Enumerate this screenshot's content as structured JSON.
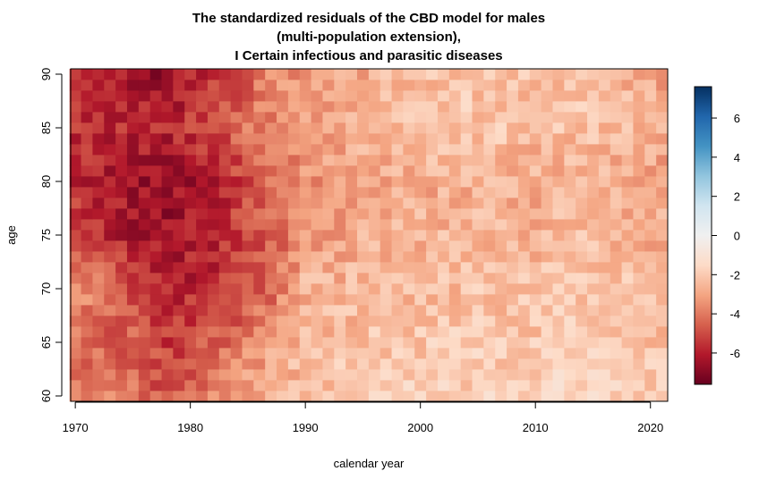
{
  "chart_data": {
    "type": "heatmap",
    "title": [
      "The standardized residuals of the CBD model for males",
      "(multi-population extension),",
      "I Certain infectious and parasitic diseases"
    ],
    "xlabel": "calendar year",
    "ylabel": "age",
    "x_ticks": [
      "1970",
      "1980",
      "1990",
      "2000",
      "2010",
      "2020"
    ],
    "y_ticks": [
      "60",
      "65",
      "70",
      "75",
      "80",
      "85",
      "90"
    ],
    "colorbar_ticks": [
      "6",
      "4",
      "2",
      "0",
      "-2",
      "-4",
      "-6"
    ],
    "xlim": [
      1970,
      2021
    ],
    "ylim": [
      60,
      90
    ],
    "zlim": [
      -7.6,
      7.6
    ],
    "colorscale": "RdBu diverging (dark red = negative, light grey = 0, dark blue = positive)",
    "color_stops": [
      "#67001F",
      "#B2182B",
      "#D6604D",
      "#F4A582",
      "#FDDBC7",
      "#F0F0F0",
      "#D1E5F0",
      "#92C5DE",
      "#4393C3",
      "#2166AC",
      "#053061"
    ],
    "values_shape": "rows = ages 60..90, columns = years 1970..2021",
    "approx_grid": {
      "ages": [
        60,
        65,
        70,
        75,
        80,
        85,
        90
      ],
      "years": [
        1970,
        1975,
        1978,
        1982,
        1987,
        1990,
        1995,
        2000,
        2005,
        2010,
        2015,
        2021
      ],
      "z": [
        [
          -3.8,
          -4.2,
          -4.8,
          -3.6,
          -2.8,
          -2.2,
          -2.0,
          -1.8,
          -1.8,
          -1.8,
          -1.6,
          -2.0
        ],
        [
          -4.2,
          -4.6,
          -5.4,
          -4.6,
          -3.2,
          -2.5,
          -2.3,
          -2.1,
          -2.0,
          -2.1,
          -1.9,
          -2.3
        ],
        [
          -3.4,
          -4.9,
          -5.8,
          -5.8,
          -4.4,
          -2.6,
          -2.5,
          -2.4,
          -2.3,
          -2.3,
          -2.1,
          -2.5
        ],
        [
          -5.0,
          -6.2,
          -6.4,
          -5.8,
          -4.6,
          -3.4,
          -2.7,
          -2.6,
          -2.5,
          -2.6,
          -2.4,
          -2.8
        ],
        [
          -5.8,
          -6.4,
          -6.6,
          -6.0,
          -4.4,
          -3.6,
          -3.0,
          -2.8,
          -2.7,
          -2.8,
          -2.6,
          -3.0
        ],
        [
          -5.6,
          -5.8,
          -5.9,
          -5.0,
          -3.6,
          -3.0,
          -2.6,
          -2.2,
          -2.1,
          -2.4,
          -2.3,
          -2.8
        ],
        [
          -5.4,
          -6.4,
          -6.6,
          -5.4,
          -3.8,
          -3.2,
          -2.8,
          -2.4,
          -2.2,
          -2.4,
          -2.3,
          -3.0
        ]
      ]
    }
  }
}
